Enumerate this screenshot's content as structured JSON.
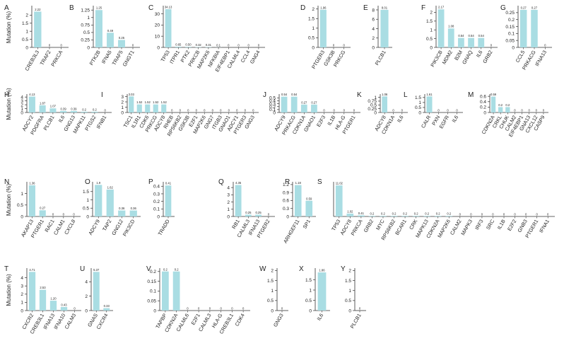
{
  "figure": {
    "ylabel": "Mutation (%)"
  },
  "colors": {
    "bar": "#a9dde3",
    "axis": "#333333",
    "text": "#222222"
  },
  "chart_data": [
    {
      "type": "bar",
      "panel": "A",
      "categories": [
        "CREB3L3",
        "TRAF2",
        "PRKCA"
      ],
      "values": [
        2.22,
        0,
        0
      ],
      "labels": [
        "2.22",
        "0",
        "0"
      ],
      "ylim": [
        0,
        2.5
      ],
      "yticks": [
        0,
        0.5,
        1,
        1.5,
        2
      ],
      "ylabel": "Mutation (%)"
    },
    {
      "type": "bar",
      "panel": "B",
      "categories": [
        "PTK2B",
        "IFNA5",
        "TRAF5",
        "GNGT1"
      ],
      "values": [
        1.25,
        0.49,
        0.25,
        0
      ],
      "labels": [
        "1.25",
        "0.49",
        "0.25",
        "0"
      ],
      "ylim": [
        0,
        1.35
      ],
      "yticks": [
        0,
        0.25,
        0.5,
        0.75,
        1,
        1.25
      ],
      "ylabel": ""
    },
    {
      "type": "bar",
      "panel": "C",
      "categories": [
        "TP53",
        "ITPR1",
        "PTK2",
        "PRKCB",
        "MAP2K6",
        "NFKBIA",
        "EIF4EBP1",
        "CALML4",
        "CCL4",
        "GNG4"
      ],
      "values": [
        34.13,
        0.65,
        0.5,
        0.32,
        0.31,
        0.1,
        0,
        0,
        0,
        0
      ],
      "labels": [
        "34.13",
        "0.65",
        "0.50",
        "0.32",
        "0.31",
        "0.1",
        "0",
        "0",
        "0",
        "0"
      ],
      "ylim": [
        0,
        36
      ],
      "yticks": [
        0,
        10,
        20,
        30
      ],
      "ylabel": ""
    },
    {
      "type": "bar",
      "panel": "D",
      "categories": [
        "PTGER3",
        "GSK3B",
        "PRKCG"
      ],
      "values": [
        1.96,
        0,
        0
      ],
      "labels": [
        "1.96",
        "0",
        "0"
      ],
      "ylim": [
        0,
        2.1
      ],
      "yticks": [
        0,
        0.5,
        1,
        1.5,
        2
      ],
      "ylabel": ""
    },
    {
      "type": "bar",
      "panel": "E",
      "categories": [
        "PLCB1"
      ],
      "values": [
        8.01
      ],
      "labels": [
        "8.01"
      ],
      "ylim": [
        0,
        8.6
      ],
      "yticks": [
        0,
        2,
        4,
        6,
        8
      ],
      "ylabel": ""
    },
    {
      "type": "bar",
      "panel": "F",
      "categories": [
        "PIK3CB",
        "MDM2",
        "B2M",
        "GNAQ",
        "IL6",
        "GRB2"
      ],
      "values": [
        2.17,
        1.08,
        0.54,
        0.54,
        0.54,
        0
      ],
      "labels": [
        "2.17",
        "1.08",
        "0.54",
        "0.54",
        "0.54",
        "0"
      ],
      "ylim": [
        0,
        2.3
      ],
      "yticks": [
        0,
        0.5,
        1,
        1.5,
        2
      ],
      "ylabel": ""
    },
    {
      "type": "bar",
      "panel": "G",
      "categories": [
        "CCL5",
        "PRKACG",
        "IFNA13"
      ],
      "values": [
        0.27,
        0.27,
        0
      ],
      "labels": [
        "0.27",
        "0.27",
        "0"
      ],
      "ylim": [
        0,
        0.29
      ],
      "yticks": [
        0,
        0.05,
        0.1,
        0.15,
        0.2,
        0.25
      ],
      "ylabel": ""
    },
    {
      "type": "bar",
      "panel": "H",
      "categories": [
        "ADCY2",
        "PDGFRA",
        "PLCB1",
        "IL6",
        "GNG13",
        "MAPK11",
        "PTGS2",
        "IFNB1"
      ],
      "values": [
        4.13,
        1.87,
        1.07,
        0.39,
        0.39,
        0.2,
        0.2,
        0
      ],
      "labels": [
        "4.13",
        "1.87",
        "1.07",
        "0.39",
        "0.39",
        "0.2",
        "0.2",
        "0"
      ],
      "ylim": [
        0,
        4.4
      ],
      "yticks": [
        0,
        1,
        2,
        3,
        4
      ],
      "ylabel": "Mutation (%)"
    },
    {
      "type": "bar",
      "panel": "I",
      "categories": [
        "TSC1",
        "IL1R1",
        "CDK6",
        "PRKCG",
        "ADCY8",
        "RHEB",
        "RPS6KB2",
        "GSK3B",
        "E2F1",
        "MAP2K6",
        "GNG7",
        "ITGB3",
        "GNAO1",
        "ADCY1",
        "PTGER3",
        "GNG3"
      ],
      "values": [
        3.03,
        1.52,
        1.52,
        1.52,
        1.52,
        0,
        0,
        0,
        0,
        0,
        0,
        0,
        0,
        0,
        0,
        0
      ],
      "labels": [
        "3.03",
        "1.52",
        "1.52",
        "1.52",
        "1.52",
        "0",
        "0",
        "0",
        "0",
        "0",
        "0",
        "0",
        "0",
        "0",
        "0",
        "0"
      ],
      "ylim": [
        0,
        3.2
      ],
      "yticks": [
        0,
        1,
        2,
        3
      ],
      "ylabel": ""
    },
    {
      "type": "bar",
      "panel": "J",
      "categories": [
        "ADCY9",
        "PRKACG",
        "CDKN1A",
        "GNAO1",
        "E2F3",
        "IL1B",
        "HLA-G",
        "PTGER1"
      ],
      "values": [
        0.54,
        0.54,
        0.27,
        0.27,
        0,
        0,
        0,
        0
      ],
      "labels": [
        "0.54",
        "0.54",
        "0.27",
        "0.27",
        "0",
        "0",
        "0",
        "0"
      ],
      "ylim": [
        0,
        0.58
      ],
      "yticks": [
        0,
        0.1,
        0.2,
        0.3,
        0.4,
        0.5
      ],
      "ylabel": ""
    },
    {
      "type": "bar",
      "panel": "K",
      "categories": [
        "ADCY8",
        "CDKN1A",
        "IL6"
      ],
      "values": [
        1.06,
        0,
        0
      ],
      "labels": [
        "1.06",
        "0",
        "0"
      ],
      "ylim": [
        0,
        1.12
      ],
      "yticks": [
        0,
        0.25,
        0.5,
        0.75,
        1
      ],
      "ylabel": ""
    },
    {
      "type": "bar",
      "panel": "L",
      "categories": [
        "CALR",
        "PXN",
        "EGFR",
        "IL6"
      ],
      "values": [
        1.61,
        0,
        0,
        0
      ],
      "labels": [
        "1.61",
        "0",
        "0",
        "0"
      ],
      "ylim": [
        0,
        1.7
      ],
      "yticks": [
        0,
        0.5,
        1,
        1.5
      ],
      "ylabel": ""
    },
    {
      "type": "bar",
      "panel": "M",
      "categories": [
        "CDKN2A",
        "CRKL",
        "CHUK",
        "CALM2",
        "EIF4EBP1",
        "GNA13",
        "CXCL12",
        "CASP9"
      ],
      "values": [
        0.59,
        0.2,
        0.2,
        0,
        0,
        0,
        0,
        0
      ],
      "labels": [
        "0.59",
        "0.2",
        "0.2",
        "0",
        "0",
        "0",
        "0",
        "0"
      ],
      "ylim": [
        0,
        0.63
      ],
      "yticks": [
        0,
        0.2,
        0.4,
        0.6
      ],
      "ylabel": ""
    },
    {
      "type": "bar",
      "panel": "N",
      "categories": [
        "AKAP13",
        "PTGER1",
        "RAC1",
        "CALM1",
        "CXCL8"
      ],
      "values": [
        1.36,
        0.27,
        0,
        0,
        0
      ],
      "labels": [
        "1.36",
        "0.27",
        "0",
        "0",
        "0"
      ],
      "ylim": [
        0,
        1.45
      ],
      "yticks": [
        0,
        0.5,
        1
      ],
      "ylabel": "Mutation (%)"
    },
    {
      "type": "bar",
      "panel": "O",
      "categories": [
        "ADCY9",
        "TAP2",
        "GNG12",
        "PIK3CD"
      ],
      "values": [
        1.9,
        1.62,
        0.36,
        0.36
      ],
      "labels": [
        "1.9",
        "1.62",
        "0.36",
        "0.36"
      ],
      "ylim": [
        0,
        2.0
      ],
      "yticks": [
        0,
        0.5,
        1,
        1.5
      ],
      "ylabel": ""
    },
    {
      "type": "bar",
      "panel": "P",
      "categories": [
        "TRADD"
      ],
      "values": [
        0.41
      ],
      "labels": [
        "0.41"
      ],
      "ylim": [
        0,
        0.44
      ],
      "yticks": [
        0,
        0.1,
        0.2,
        0.3,
        0.4
      ],
      "ylabel": ""
    },
    {
      "type": "bar",
      "panel": "Q",
      "categories": [
        "RB1",
        "CALML3",
        "IFNA13",
        "PTGER2"
      ],
      "values": [
        4.35,
        0.25,
        0.25,
        0
      ],
      "labels": [
        "4.35",
        "0.25",
        "0.25",
        "0"
      ],
      "ylim": [
        0,
        4.6
      ],
      "yticks": [
        0,
        1,
        2,
        3,
        4
      ],
      "ylabel": ""
    },
    {
      "type": "bar",
      "panel": "R",
      "categories": [
        "ARHGEF11",
        "SP1"
      ],
      "values": [
        1.18,
        0.59
      ],
      "labels": [
        "1.18",
        "0.59"
      ],
      "ylim": [
        0,
        1.25
      ],
      "yticks": [
        0,
        0.3,
        0.6,
        0.9,
        1.2
      ],
      "ylabel": ""
    },
    {
      "type": "bar",
      "panel": "S",
      "categories": [
        "TP53",
        "ADCY8",
        "PRKCA",
        "GRB2",
        "MYC",
        "RPS6KB2",
        "BCAR1",
        "CRK",
        "MAPK13",
        "CDKN2A",
        "MAP2K6",
        "CALM2",
        "MAPK3",
        "IRF3",
        "SRC",
        "IL1B",
        "E2F2",
        "GNB3",
        "PTGER1",
        "IFNA1"
      ],
      "values": [
        11.02,
        1.02,
        0.41,
        0.2,
        0.2,
        0.2,
        0.2,
        0.2,
        0.2,
        0.2,
        0.2,
        0,
        0,
        0,
        0,
        0,
        0,
        0,
        0,
        0
      ],
      "labels": [
        "11.02",
        "1.02",
        "0.41",
        "0.2",
        "0.2",
        "0.2",
        "0.2",
        "0.2",
        "0.2",
        "0.2",
        "0.2",
        "0",
        "0",
        "0",
        "0",
        "0",
        "0",
        "0",
        "0",
        "0"
      ],
      "ylim": [
        0,
        11.8
      ],
      "yticks": [],
      "ylabel": ""
    },
    {
      "type": "bar",
      "panel": "T",
      "categories": [
        "CXCR2",
        "CREB3L1",
        "IFNA13",
        "IFNA10",
        "CALM3"
      ],
      "values": [
        4.71,
        2.53,
        1.2,
        0.43,
        0
      ],
      "labels": [
        "4.71",
        "2.53",
        "1.20",
        "0.43",
        "0"
      ],
      "ylim": [
        0,
        5.0
      ],
      "yticks": [
        0,
        1,
        2,
        3,
        4
      ],
      "ylabel": "Mutation (%)"
    },
    {
      "type": "bar",
      "panel": "U",
      "categories": [
        "GNAS",
        "CXCR4"
      ],
      "values": [
        5.37,
        0.33
      ],
      "labels": [
        "5.37",
        "0.33"
      ],
      "ylim": [
        0,
        5.7
      ],
      "yticks": [
        0,
        2,
        4
      ],
      "ylabel": ""
    },
    {
      "type": "bar",
      "panel": "V",
      "categories": [
        "TAPBP",
        "CDKN2A",
        "CALML6",
        "E2F1",
        "CALML3",
        "HLA-G",
        "CREB3L1",
        "CDK4"
      ],
      "values": [
        0.2,
        0.2,
        0,
        0,
        0,
        0,
        0,
        0
      ],
      "labels": [
        "0.2",
        "0.2",
        "0",
        "0",
        "0",
        "0",
        "0",
        "0"
      ],
      "ylim": [
        0,
        0.21
      ],
      "yticks": [
        0,
        0.05,
        0.1,
        0.15,
        0.2
      ],
      "ylabel": ""
    },
    {
      "type": "bar",
      "panel": "W",
      "categories": [
        "GNG3"
      ],
      "values": [
        0
      ],
      "labels": [
        "0"
      ],
      "ylim": [
        0,
        2.05
      ],
      "yticks": [
        0,
        0.5,
        1,
        1.5,
        2
      ],
      "ylabel": ""
    },
    {
      "type": "bar",
      "panel": "X",
      "categories": [
        "IL6"
      ],
      "values": [
        1.86
      ],
      "labels": [
        "1.86"
      ],
      "ylim": [
        0,
        2.0
      ],
      "yticks": [
        0,
        0.5,
        1,
        1.5
      ],
      "ylabel": ""
    },
    {
      "type": "bar",
      "panel": "Y",
      "categories": [
        "PLCB1"
      ],
      "values": [
        0
      ],
      "labels": [
        "0"
      ],
      "ylim": [
        0,
        2.05
      ],
      "yticks": [
        0,
        0.5,
        1,
        1.5,
        2
      ],
      "ylabel": ""
    }
  ]
}
